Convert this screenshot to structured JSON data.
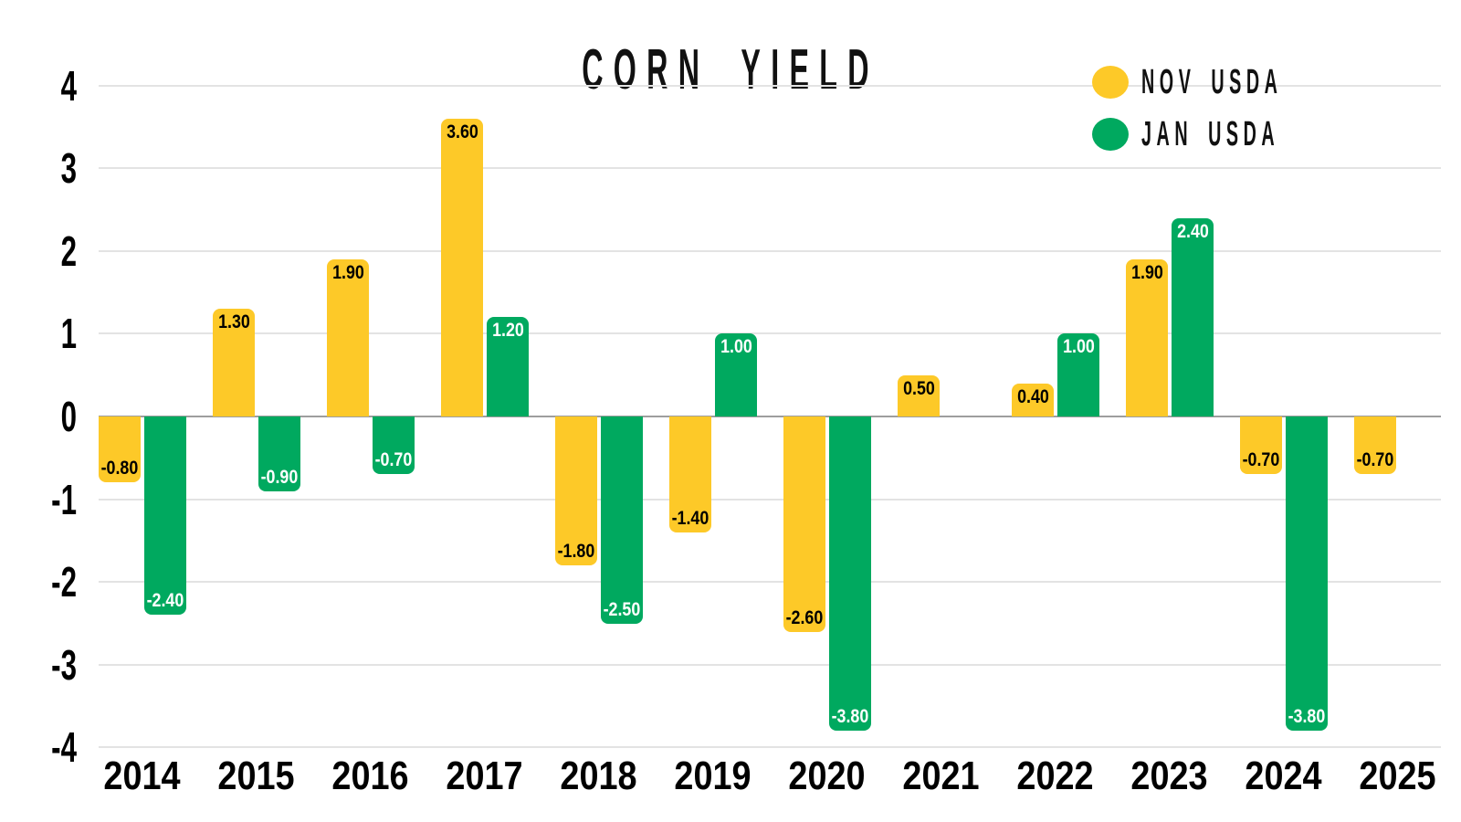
{
  "chart_data": {
    "type": "bar",
    "title": "CORN YIELD",
    "categories": [
      "2014",
      "2015",
      "2016",
      "2017",
      "2018",
      "2019",
      "2020",
      "2021",
      "2022",
      "2023",
      "2024",
      "2025"
    ],
    "series": [
      {
        "name": "NOV USDA",
        "color": "#FDC928",
        "label_color": "#000000",
        "values": [
          -0.8,
          1.3,
          1.9,
          3.6,
          -1.8,
          -1.4,
          -2.6,
          0.5,
          0.4,
          1.9,
          -0.7,
          -0.7
        ],
        "labels": [
          "-0.80",
          "1.30",
          "1.90",
          "3.60",
          "-1.80",
          "-1.40",
          "-2.60",
          "0.50",
          "0.40",
          "1.90",
          "-0.70",
          "-0.70"
        ]
      },
      {
        "name": "JAN USDA",
        "color": "#00A95F",
        "label_color": "#FFFFFF",
        "values": [
          -2.4,
          -0.9,
          -0.7,
          1.2,
          -2.5,
          1.0,
          -3.8,
          null,
          1.0,
          2.4,
          -3.8,
          null
        ],
        "labels": [
          "-2.40",
          "-0.90",
          "-0.70",
          "1.20",
          "-2.50",
          "1.00",
          "-3.80",
          null,
          "1.00",
          "2.40",
          "-3.80",
          null
        ]
      }
    ],
    "yticks": [
      "4",
      "3",
      "2",
      "1",
      "0",
      "-1",
      "-2",
      "-3",
      "-4"
    ],
    "ylim": [
      -4,
      4
    ],
    "grid": true,
    "legend_position": "top-right",
    "colors": {
      "background": "#FFFFFF",
      "grid": "#E3E3E3",
      "zero_line": "#9E9E9E",
      "text": "#000000"
    }
  }
}
